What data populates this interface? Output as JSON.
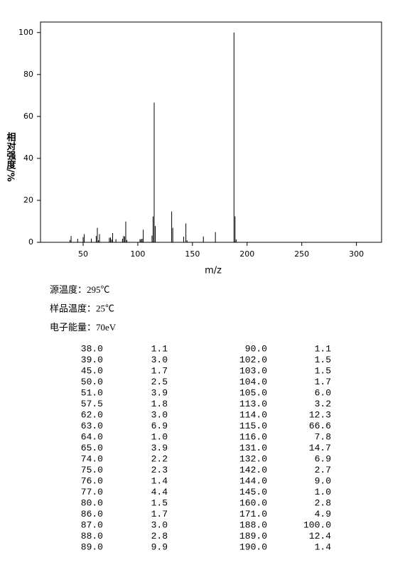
{
  "chart_data": {
    "type": "stem",
    "x_label": "m/z",
    "y_label": "相对强度/%",
    "xlim": [
      11,
      323
    ],
    "ylim": [
      0,
      105
    ],
    "xticks": [
      50,
      100,
      150,
      200,
      250,
      300
    ],
    "yticks": [
      0,
      20,
      40,
      60,
      80,
      100
    ],
    "color": "#000000",
    "annotations": [
      "源温度：295℃",
      "样品温度：25℃",
      "电子能量：70eV"
    ],
    "x": [
      38,
      39,
      45,
      50,
      51,
      57.5,
      62,
      63,
      64,
      65,
      74,
      75,
      76,
      77,
      80,
      86,
      87,
      88,
      89,
      90,
      102,
      103,
      104,
      105,
      113,
      114,
      115,
      116,
      131,
      132,
      142,
      144,
      145,
      160,
      171,
      188,
      189,
      190
    ],
    "x_labels": [
      "38.0",
      "39.0",
      "45.0",
      "50.0",
      "51.0",
      "57.5",
      "62.0",
      "63.0",
      "64.0",
      "65.0",
      "74.0",
      "75.0",
      "76.0",
      "77.0",
      "80.0",
      "86.0",
      "87.0",
      "88.0",
      "89.0",
      "90.0",
      "102.0",
      "103.0",
      "104.0",
      "105.0",
      "113.0",
      "114.0",
      "115.0",
      "116.0",
      "131.0",
      "132.0",
      "142.0",
      "144.0",
      "145.0",
      "160.0",
      "171.0",
      "188.0",
      "189.0",
      "190.0"
    ],
    "values": [
      1.1,
      3.0,
      1.7,
      2.5,
      3.9,
      1.8,
      3.0,
      6.9,
      1.0,
      3.9,
      2.2,
      2.3,
      1.4,
      4.4,
      1.5,
      1.7,
      3.0,
      2.8,
      9.9,
      1.1,
      1.5,
      1.5,
      1.7,
      6.0,
      3.2,
      12.3,
      66.6,
      7.8,
      14.7,
      6.9,
      2.7,
      9.0,
      1.0,
      2.8,
      4.9,
      100.0,
      12.4,
      1.4
    ],
    "value_labels": [
      "1.1",
      "3.0",
      "1.7",
      "2.5",
      "3.9",
      "1.8",
      "3.0",
      "6.9",
      "1.0",
      "3.9",
      "2.2",
      "2.3",
      "1.4",
      "4.4",
      "1.5",
      "1.7",
      "3.0",
      "2.8",
      "9.9",
      "1.1",
      "1.5",
      "1.5",
      "1.7",
      "6.0",
      "3.2",
      "12.3",
      "66.6",
      "7.8",
      "14.7",
      "6.9",
      "2.7",
      "9.0",
      "1.0",
      "2.8",
      "4.9",
      "100.0",
      "12.4",
      "1.4"
    ]
  }
}
